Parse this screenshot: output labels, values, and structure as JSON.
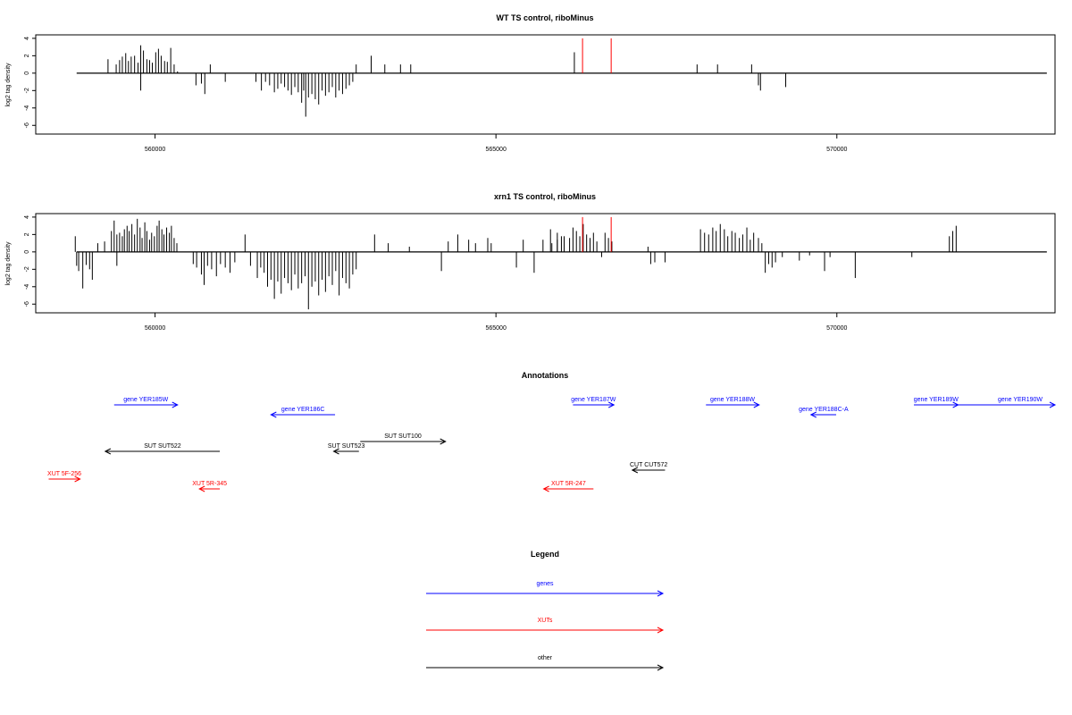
{
  "chart_data": [
    {
      "type": "bar",
      "title": "WT TS control, riboMinus",
      "ylabel": "log2 tag density",
      "xlabel": "",
      "xlim": [
        558250,
        573200
      ],
      "ylim": [
        -7,
        4.4
      ],
      "yticks": [
        4,
        2,
        0,
        -2,
        -4,
        -6
      ],
      "xticks": [
        560000,
        565000,
        570000
      ],
      "grid": false,
      "series": [
        {
          "color": "#000000",
          "x": [
            559310,
            559430,
            559480,
            559520,
            559570,
            559610,
            559650,
            559700,
            559750,
            559790,
            559830,
            559880,
            559920,
            559960,
            560010,
            560050,
            560090,
            560140,
            560180,
            560230,
            560280,
            560330,
            559790,
            560600,
            560680,
            560730,
            560810,
            561030,
            561480,
            561560,
            561620,
            561680,
            561750,
            561800,
            561850,
            561900,
            561950,
            562000,
            562050,
            562100,
            562150,
            562180,
            562210,
            562250,
            562300,
            562350,
            562400,
            562450,
            562500,
            562550,
            562600,
            562650,
            562700,
            562750,
            562800,
            562850,
            562900,
            562950,
            563170,
            563370,
            563600,
            563750,
            566150,
            567950,
            568250,
            568750,
            568850,
            568880,
            569250
          ],
          "values": [
            1.6,
            1.0,
            1.5,
            1.9,
            2.3,
            1.4,
            1.9,
            2.0,
            1.2,
            3.2,
            2.6,
            1.6,
            1.5,
            1.2,
            2.4,
            2.8,
            2.0,
            1.4,
            1.3,
            2.9,
            1.0,
            0.2,
            -2.0,
            -1.4,
            -1.2,
            -2.4,
            1.0,
            -1.0,
            -1.0,
            -2.0,
            -1.0,
            -1.4,
            -2.2,
            -1.8,
            -1.2,
            -1.6,
            -2.0,
            -2.5,
            -1.6,
            -2.2,
            -3.4,
            -2.0,
            -5.0,
            -2.8,
            -2.4,
            -3.0,
            -3.6,
            -2.0,
            -2.6,
            -2.2,
            -1.6,
            -2.8,
            -2.0,
            -2.4,
            -1.8,
            -1.4,
            -1.0,
            1.0,
            2.0,
            1.0,
            1.0,
            1.0,
            2.4,
            1.0,
            1.0,
            1.0,
            -1.4,
            -2.0,
            -1.6
          ]
        },
        {
          "color": "#ff0000",
          "x": [
            566270,
            566690
          ],
          "values": [
            4.0,
            4.0
          ]
        }
      ]
    },
    {
      "type": "bar",
      "title": "xrn1 TS control, riboMinus",
      "ylabel": "log2 tag density",
      "xlabel": "",
      "xlim": [
        558250,
        573200
      ],
      "ylim": [
        -7,
        4.4
      ],
      "yticks": [
        4,
        2,
        0,
        -2,
        -4,
        -6
      ],
      "xticks": [
        560000,
        565000,
        570000
      ],
      "grid": false,
      "series": [
        {
          "color": "#000000",
          "x": [
            558830,
            558850,
            558880,
            558940,
            558990,
            559040,
            559080,
            559160,
            559260,
            559360,
            559400,
            559440,
            559480,
            559520,
            559550,
            559590,
            559620,
            559660,
            559700,
            559740,
            559780,
            559810,
            559850,
            559880,
            559920,
            559950,
            559990,
            560030,
            560060,
            560100,
            560130,
            560170,
            560210,
            560240,
            560280,
            560320,
            559440,
            560560,
            560610,
            560680,
            560720,
            560770,
            560830,
            560900,
            560960,
            561030,
            561100,
            561170,
            561320,
            561400,
            561500,
            561550,
            561600,
            561650,
            561700,
            561750,
            561800,
            561850,
            561900,
            561950,
            562000,
            562050,
            562100,
            562150,
            562200,
            562250,
            562300,
            562350,
            562400,
            562450,
            562500,
            562550,
            562600,
            562650,
            562700,
            562750,
            562800,
            562850,
            562900,
            562950,
            563220,
            563420,
            563730,
            564200,
            564300,
            564440,
            564600,
            564700,
            564880,
            564930,
            565300,
            565400,
            565560,
            565690,
            565800,
            565900,
            566000,
            566080,
            566130,
            566180,
            566230,
            566280,
            566330,
            566380,
            566430,
            566480,
            565820,
            565900,
            565960,
            566550,
            566600,
            566650,
            566700,
            567230,
            567270,
            567330,
            567480,
            568000,
            568060,
            568120,
            568180,
            568230,
            568290,
            568350,
            568400,
            568460,
            568510,
            568570,
            568620,
            568680,
            568730,
            568780,
            568850,
            568900,
            568950,
            569000,
            569050,
            569100,
            569200,
            569450,
            569600,
            569820,
            569900,
            570270,
            571100,
            571650,
            571700,
            571750
          ],
          "values": [
            1.8,
            -1.6,
            -2.2,
            -4.2,
            -1.5,
            -2.0,
            -3.2,
            1.0,
            1.2,
            2.4,
            3.6,
            2.0,
            2.2,
            1.8,
            2.6,
            3.0,
            2.4,
            3.2,
            2.0,
            3.8,
            2.8,
            1.6,
            3.4,
            2.4,
            1.4,
            2.2,
            1.8,
            3.0,
            3.6,
            2.6,
            2.0,
            2.8,
            2.2,
            3.0,
            1.6,
            1.0,
            -1.6,
            -1.4,
            -1.8,
            -2.6,
            -3.8,
            -1.6,
            -2.0,
            -2.8,
            -1.4,
            -1.8,
            -2.4,
            -1.2,
            2.0,
            -1.6,
            -3.0,
            -1.8,
            -2.4,
            -4.0,
            -3.2,
            -5.4,
            -3.4,
            -4.8,
            -3.0,
            -3.6,
            -4.4,
            -2.6,
            -4.2,
            -3.6,
            -2.8,
            -6.6,
            -4.0,
            -3.4,
            -5.0,
            -3.2,
            -4.6,
            -2.8,
            -3.8,
            -2.2,
            -5.0,
            -3.0,
            -3.6,
            -4.2,
            -2.6,
            -2.0,
            2.0,
            1.0,
            0.6,
            -2.2,
            1.2,
            2.0,
            1.4,
            1.0,
            1.6,
            1.0,
            -1.8,
            1.4,
            -2.4,
            1.4,
            2.6,
            2.2,
            1.8,
            1.6,
            2.8,
            2.4,
            1.8,
            3.2,
            2.0,
            1.6,
            2.2,
            1.2,
            1.0,
            1.4,
            1.8,
            -0.6,
            2.2,
            1.6,
            1.2,
            0.6,
            -1.4,
            -1.2,
            -1.2,
            2.6,
            2.2,
            2.0,
            2.8,
            2.4,
            3.2,
            2.6,
            1.8,
            2.4,
            2.2,
            1.6,
            2.0,
            2.8,
            1.4,
            2.2,
            1.6,
            1.0,
            -2.4,
            -1.4,
            -1.8,
            -1.2,
            -0.6,
            -1.0,
            -0.4,
            -2.2,
            -0.6,
            -3.0,
            -0.6,
            1.8,
            2.4,
            3.0
          ]
        },
        {
          "color": "#ff0000",
          "x": [
            566270,
            566690
          ],
          "values": [
            4.0,
            4.0
          ]
        }
      ]
    }
  ],
  "annotations_panel": {
    "title": "Annotations",
    "items": [
      {
        "label": "gene YER185W",
        "color": "#0000ff",
        "x1": 559400,
        "x2": 560330,
        "dir": "right",
        "row": 0
      },
      {
        "label": "gene YER186C",
        "color": "#0000ff",
        "x1": 561700,
        "x2": 562640,
        "dir": "left",
        "row": 1
      },
      {
        "label": "gene YER187W",
        "color": "#0000ff",
        "x1": 566130,
        "x2": 566730,
        "dir": "right",
        "row": 0
      },
      {
        "label": "gene YER188W",
        "color": "#0000ff",
        "x1": 568080,
        "x2": 568860,
        "dir": "right",
        "row": 0
      },
      {
        "label": "gene YER188C-A",
        "color": "#0000ff",
        "x1": 569620,
        "x2": 569990,
        "dir": "left",
        "row": 1
      },
      {
        "label": "gene YER189W",
        "color": "#0000ff",
        "x1": 571130,
        "x2": 571780,
        "dir": "right",
        "row": 0
      },
      {
        "label": "gene YER190W",
        "color": "#0000ff",
        "x1": 571780,
        "x2": 574500,
        "dir": "right",
        "row": 0
      },
      {
        "label": "SUT SUT522",
        "color": "#000000",
        "x1": 559270,
        "x2": 560950,
        "dir": "left",
        "row": 3
      },
      {
        "label": "SUT SUT100",
        "color": "#000000",
        "x1": 563010,
        "x2": 564260,
        "dir": "right",
        "row": 2
      },
      {
        "label": "SUT SUT523",
        "color": "#000000",
        "x1": 562620,
        "x2": 562990,
        "dir": "left",
        "row": 3
      },
      {
        "label": "CUT CUT572",
        "color": "#000000",
        "x1": 567000,
        "x2": 567480,
        "dir": "left",
        "row": 4
      },
      {
        "label": "XUT 5F-256",
        "color": "#ff0000",
        "x1": 558440,
        "x2": 558900,
        "dir": "right",
        "row": 5
      },
      {
        "label": "XUT 5R-345",
        "color": "#ff0000",
        "x1": 560650,
        "x2": 560950,
        "dir": "left",
        "row": 6
      },
      {
        "label": "XUT 5R-247",
        "color": "#ff0000",
        "x1": 565700,
        "x2": 566430,
        "dir": "left",
        "row": 6
      }
    ]
  },
  "legend": {
    "title": "Legend",
    "items": [
      {
        "label": "genes",
        "color": "#0000ff"
      },
      {
        "label": "XUTs",
        "color": "#ff0000"
      },
      {
        "label": "other",
        "color": "#000000"
      }
    ]
  }
}
